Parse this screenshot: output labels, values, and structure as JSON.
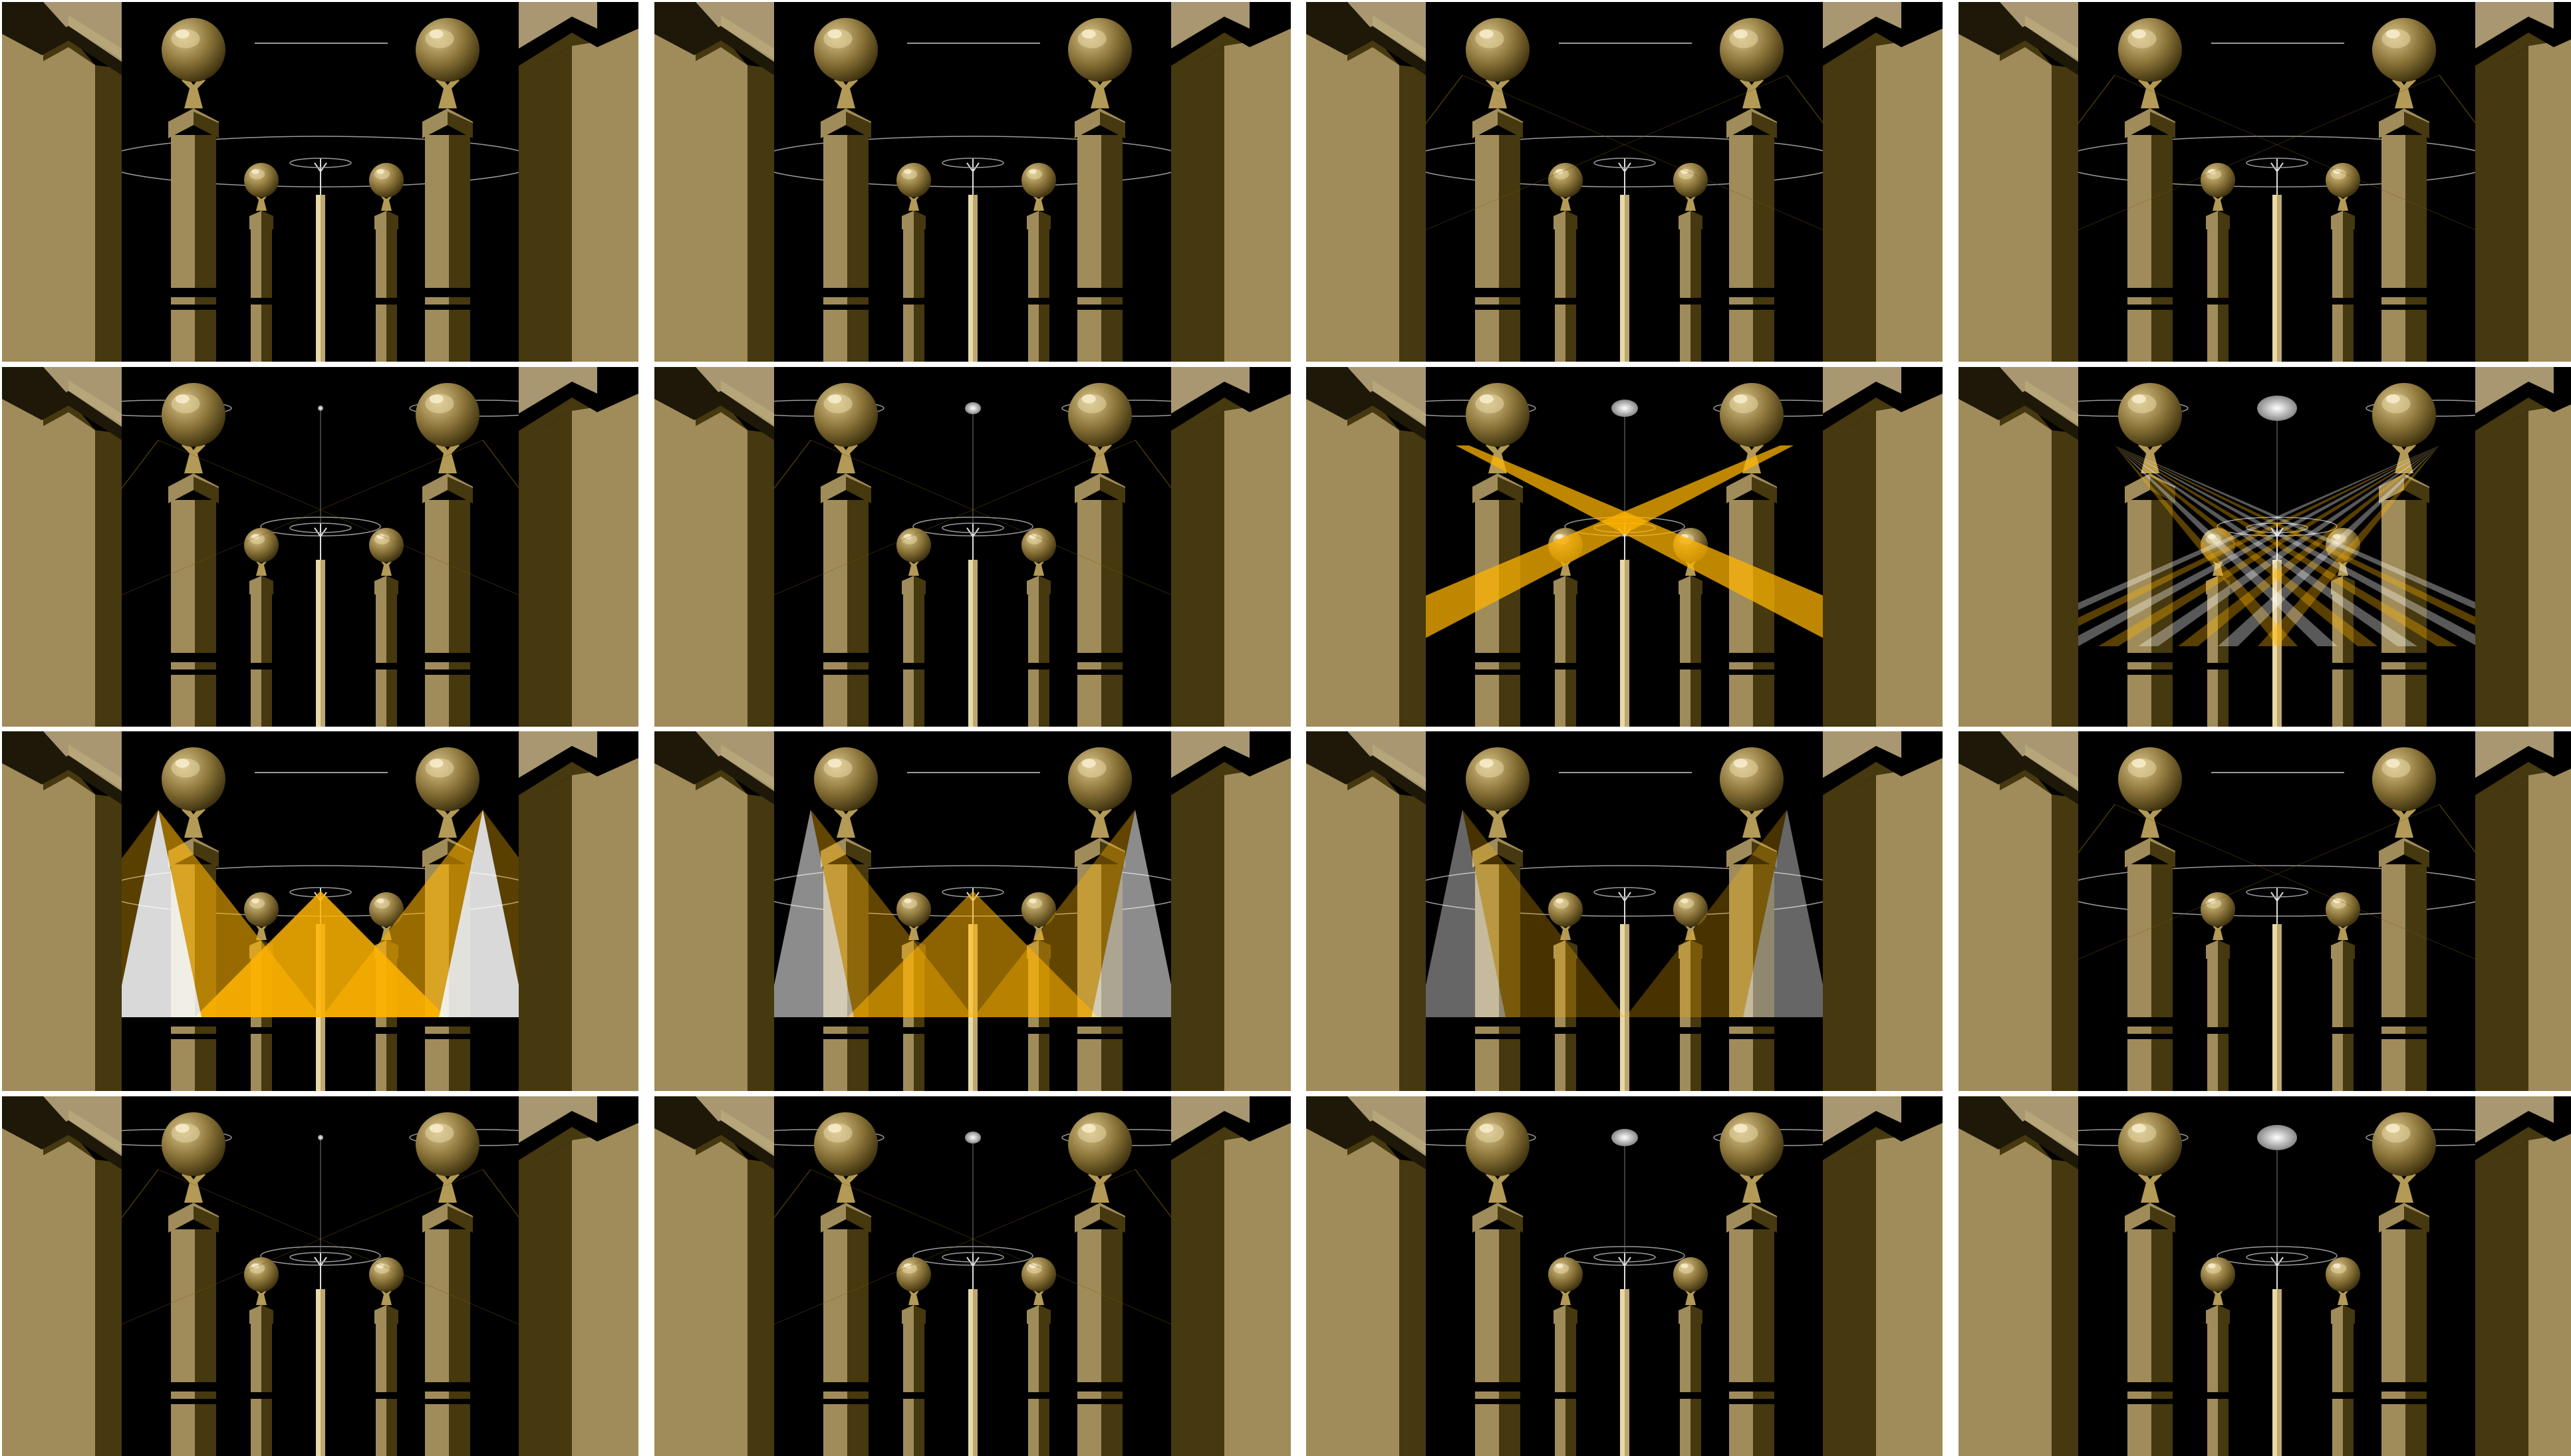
{
  "sheet": {
    "rows": 4,
    "columns": 4,
    "background": "#ffffff"
  },
  "colors": {
    "backdrop": "#000000",
    "column_light": "#a08c5a",
    "column_dark": "#46380f",
    "column_shadow": "#1e1808",
    "sphere_base": "#8a7338",
    "sphere_highlight": "#e6d6a4",
    "beam_gold": "#ffb400",
    "beam_white": "#ffffff",
    "wire": "#9a9a9a"
  },
  "frames": [
    {
      "id": 1,
      "orbit": "wide",
      "lamp": 0,
      "beams": "none",
      "level": 0
    },
    {
      "id": 2,
      "orbit": "wide",
      "lamp": 0,
      "beams": "none",
      "level": 0
    },
    {
      "id": 3,
      "orbit": "wide",
      "lamp": 0,
      "beams": "faint-x",
      "level": 0.1
    },
    {
      "id": 4,
      "orbit": "wide",
      "lamp": 0,
      "beams": "faint-x",
      "level": 0.15
    },
    {
      "id": 5,
      "orbit": "split",
      "lamp": 1,
      "beams": "faint-x",
      "level": 0.15
    },
    {
      "id": 6,
      "orbit": "split",
      "lamp": 2,
      "beams": "faint-x",
      "level": 0.2
    },
    {
      "id": 7,
      "orbit": "split",
      "lamp": 3,
      "beams": "cross",
      "level": 1
    },
    {
      "id": 8,
      "orbit": "split",
      "lamp": 4,
      "beams": "fan",
      "level": 1
    },
    {
      "id": 9,
      "orbit": "wide",
      "lamp": 0,
      "beams": "spots",
      "level": 1
    },
    {
      "id": 10,
      "orbit": "wide",
      "lamp": 0,
      "beams": "spots-dim",
      "level": 0.6
    },
    {
      "id": 11,
      "orbit": "wide",
      "lamp": 0,
      "beams": "spots-out",
      "level": 0.4
    },
    {
      "id": 12,
      "orbit": "wide",
      "lamp": 0,
      "beams": "faint-x",
      "level": 0.1
    },
    {
      "id": 13,
      "orbit": "split",
      "lamp": 1,
      "beams": "faint-x",
      "level": 0.1
    },
    {
      "id": 14,
      "orbit": "split",
      "lamp": 2,
      "beams": "faint-x",
      "level": 0.1
    },
    {
      "id": 15,
      "orbit": "split",
      "lamp": 3,
      "beams": "none",
      "level": 0
    },
    {
      "id": 16,
      "orbit": "split",
      "lamp": 4,
      "beams": "none",
      "level": 0
    }
  ]
}
